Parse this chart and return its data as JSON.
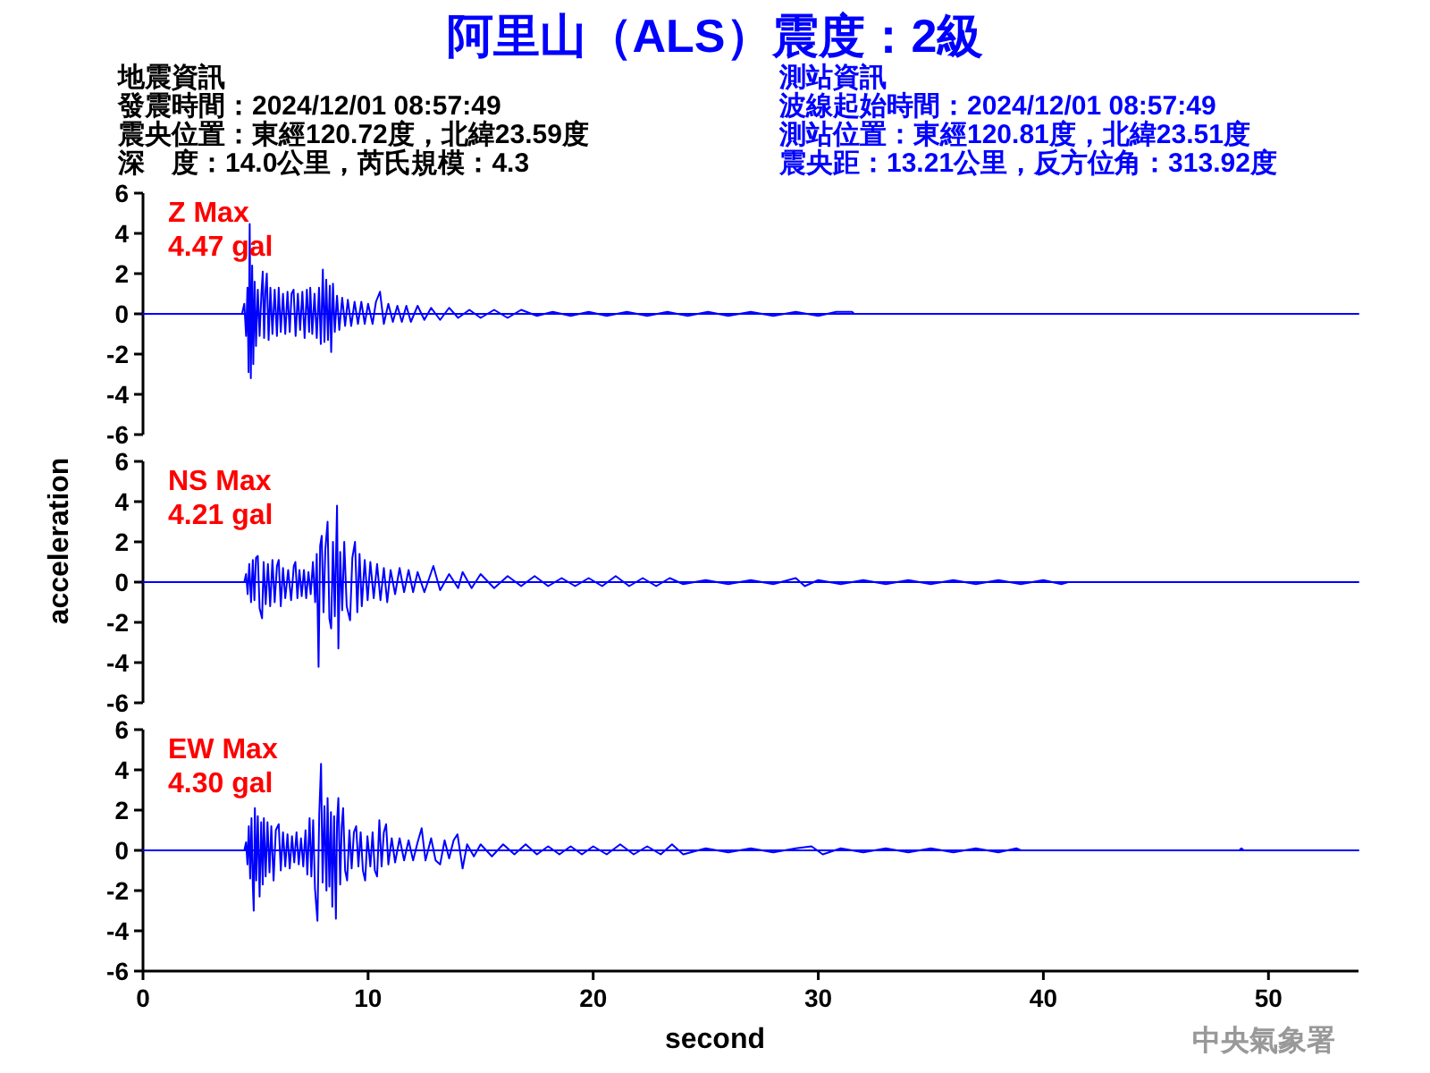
{
  "chart_data": [
    {
      "type": "other",
      "title": "阿里山（ALS）震度：2級",
      "annotations": [
        "地震資訊",
        "發震時間：2024/12/01 08:57:49",
        "震央位置：東經120.72度，北緯23.59度",
        "深　度：14.0公里，芮氏規模：4.3",
        "測站資訊",
        "波線起始時間：2024/12/01 08:57:49",
        "測站位置：東經120.81度，北緯23.51度",
        "震央距：13.21公里，反方位角：313.92度"
      ]
    },
    {
      "type": "line",
      "color": "#0000ff",
      "xlim": [
        0,
        54
      ],
      "ylim": [
        -6,
        6
      ],
      "yticks": [
        -6,
        -4,
        -2,
        0,
        2,
        4,
        6
      ],
      "tick_labels": "y",
      "ref_lines": [
        {
          "axis": "y",
          "value": 0,
          "color": "#0000ff"
        }
      ],
      "annotations": [
        "Z Max",
        "4.47 gal"
      ],
      "x": [
        0,
        4.4,
        4.5,
        4.58,
        4.64,
        4.69,
        4.74,
        4.79,
        4.85,
        4.9,
        4.96,
        5.02,
        5.1,
        5.18,
        5.26,
        5.32,
        5.38,
        5.44,
        5.5,
        5.58,
        5.66,
        5.75,
        5.85,
        5.95,
        6.03,
        6.12,
        6.22,
        6.32,
        6.42,
        6.52,
        6.6,
        6.69,
        6.78,
        6.88,
        6.98,
        7.08,
        7.18,
        7.28,
        7.38,
        7.43,
        7.52,
        7.62,
        7.72,
        7.82,
        7.9,
        7.99,
        8.06,
        8.14,
        8.22,
        8.3,
        8.36,
        8.44,
        8.52,
        8.62,
        8.72,
        8.85,
        8.98,
        9.1,
        9.25,
        9.4,
        9.55,
        9.7,
        9.85,
        10.0,
        10.2,
        10.35,
        10.53,
        10.7,
        10.9,
        11.1,
        11.3,
        11.5,
        11.7,
        11.9,
        12.2,
        12.5,
        12.8,
        13.2,
        13.6,
        14.0,
        14.5,
        15.0,
        15.6,
        16.2,
        16.8,
        17.5,
        18.2,
        19.0,
        19.8,
        20.6,
        21.5,
        22.4,
        23.3,
        24.2,
        25.1,
        26.0,
        27.0,
        28.0,
        29.0,
        30.0,
        30.8,
        31.5,
        31.6,
        54
      ],
      "values": [
        0,
        0,
        0.5,
        -1.1,
        1.3,
        -2.9,
        4.47,
        -3.2,
        2.4,
        -2.5,
        1.6,
        -1.6,
        1.2,
        -1.1,
        1.0,
        2.1,
        -1.2,
        1.1,
        2.0,
        -1.3,
        1.3,
        -1.0,
        1.2,
        -1.1,
        1.3,
        -0.9,
        1.0,
        -1.0,
        1.1,
        -0.9,
        1.0,
        1.2,
        -1.1,
        1.0,
        -0.8,
        1.1,
        -1.2,
        1.2,
        -0.9,
        1.3,
        -1.0,
        1.0,
        -1.2,
        1.3,
        -1.5,
        2.2,
        -1.4,
        1.7,
        -1.3,
        1.4,
        -1.9,
        1.5,
        -0.9,
        0.9,
        -0.8,
        0.8,
        -0.6,
        0.7,
        -0.6,
        0.6,
        -0.5,
        0.6,
        -0.5,
        0.5,
        -0.5,
        0.6,
        1.1,
        -0.5,
        0.5,
        -0.4,
        0.4,
        -0.4,
        0.4,
        -0.4,
        0.4,
        -0.3,
        0.3,
        -0.3,
        0.3,
        -0.2,
        0.2,
        -0.2,
        0.2,
        -0.2,
        0.2,
        -0.1,
        0.1,
        -0.1,
        0.1,
        -0.1,
        0.1,
        -0.1,
        0.1,
        -0.1,
        0.1,
        -0.1,
        0.1,
        -0.1,
        0.1,
        -0.1,
        0.1,
        0.1,
        0,
        0
      ]
    },
    {
      "type": "line",
      "color": "#0000ff",
      "xlim": [
        0,
        54
      ],
      "ylim": [
        -6,
        6
      ],
      "yticks": [
        -6,
        -4,
        -2,
        0,
        2,
        4,
        6
      ],
      "tick_labels": "y",
      "ref_lines": [
        {
          "axis": "y",
          "value": 0,
          "color": "#0000ff"
        }
      ],
      "ylabel": "acceleration",
      "annotations": [
        "NS Max",
        "4.21 gal"
      ],
      "x": [
        0,
        4.5,
        4.58,
        4.65,
        4.72,
        4.8,
        4.88,
        4.95,
        5.02,
        5.1,
        5.18,
        5.29,
        5.36,
        5.45,
        5.55,
        5.65,
        5.75,
        5.85,
        5.95,
        6.03,
        6.12,
        6.22,
        6.32,
        6.45,
        6.58,
        6.7,
        6.77,
        6.86,
        6.95,
        7.05,
        7.15,
        7.25,
        7.35,
        7.45,
        7.55,
        7.65,
        7.72,
        7.8,
        7.87,
        7.94,
        8.02,
        8.1,
        8.2,
        8.28,
        8.36,
        8.44,
        8.52,
        8.62,
        8.68,
        8.76,
        8.85,
        8.94,
        9.05,
        9.2,
        9.3,
        9.42,
        9.52,
        9.62,
        9.72,
        9.85,
        9.98,
        10.1,
        10.25,
        10.4,
        10.55,
        10.7,
        10.85,
        11.0,
        11.2,
        11.4,
        11.6,
        11.8,
        12.0,
        12.2,
        12.5,
        12.9,
        13.2,
        13.6,
        14.0,
        14.2,
        14.6,
        15.0,
        15.6,
        16.2,
        16.8,
        17.4,
        18.0,
        18.6,
        19.2,
        19.8,
        20.4,
        21.0,
        21.6,
        22.2,
        22.8,
        23.4,
        24.0,
        25.0,
        26.0,
        27.0,
        28.0,
        29.0,
        29.4,
        30.0,
        31.0,
        32.0,
        33.0,
        34.0,
        35.0,
        36.0,
        37.0,
        38.0,
        39.0,
        40.0,
        40.8,
        41.1,
        54
      ],
      "values": [
        0,
        0,
        0.4,
        -0.6,
        0.9,
        -1.0,
        1.1,
        -0.9,
        1.2,
        1.3,
        -1.3,
        -1.8,
        1.0,
        -1.1,
        0.9,
        -1.2,
        1.1,
        -1.0,
        0.8,
        1.1,
        -1.2,
        0.7,
        -0.8,
        0.6,
        -0.9,
        0.8,
        1.0,
        -0.8,
        0.6,
        -0.7,
        0.6,
        -0.8,
        0.5,
        -0.6,
        1.0,
        -1.0,
        1.4,
        -4.21,
        1.8,
        2.3,
        -1.5,
        1.6,
        3.0,
        -1.8,
        -2.3,
        2.0,
        -1.7,
        3.8,
        -3.3,
        1.5,
        -1.4,
        2.0,
        -1.2,
        -1.9,
        1.2,
        2.0,
        -1.5,
        1.4,
        -1.2,
        1.1,
        -0.9,
        1.0,
        -0.8,
        0.9,
        -0.9,
        0.7,
        -1.0,
        0.6,
        -0.6,
        0.7,
        -0.5,
        0.6,
        -0.5,
        0.5,
        -0.5,
        0.8,
        -0.4,
        0.4,
        -0.3,
        0.5,
        -0.3,
        0.4,
        -0.3,
        0.3,
        -0.2,
        0.3,
        -0.2,
        0.2,
        -0.2,
        0.2,
        -0.2,
        0.3,
        -0.2,
        0.2,
        -0.2,
        0.2,
        -0.1,
        0.1,
        -0.1,
        0.1,
        -0.1,
        0.2,
        -0.2,
        0.1,
        -0.1,
        0.1,
        -0.1,
        0.1,
        -0.1,
        0.1,
        -0.1,
        0.1,
        -0.1,
        0.1,
        -0.1,
        0,
        0
      ]
    },
    {
      "type": "line",
      "color": "#0000ff",
      "xlim": [
        0,
        54
      ],
      "ylim": [
        -6,
        6
      ],
      "yticks": [
        -6,
        -4,
        -2,
        0,
        2,
        4,
        6
      ],
      "xticks": [
        0,
        10,
        20,
        30,
        40,
        50
      ],
      "xlabel": "second",
      "ref_lines": [
        {
          "axis": "y",
          "value": 0,
          "color": "#0000ff"
        }
      ],
      "annotations": [
        "EW Max",
        "4.30 gal",
        "中央氣象署"
      ],
      "x": [
        0,
        4.5,
        4.58,
        4.64,
        4.7,
        4.76,
        4.82,
        4.88,
        4.92,
        4.97,
        5.03,
        5.1,
        5.18,
        5.25,
        5.32,
        5.37,
        5.45,
        5.53,
        5.62,
        5.7,
        5.8,
        5.9,
        6.03,
        6.12,
        6.22,
        6.32,
        6.42,
        6.52,
        6.62,
        6.72,
        6.82,
        6.92,
        7.02,
        7.12,
        7.22,
        7.3,
        7.4,
        7.48,
        7.56,
        7.64,
        7.75,
        7.83,
        7.91,
        7.98,
        8.06,
        8.15,
        8.2,
        8.28,
        8.35,
        8.41,
        8.49,
        8.57,
        8.62,
        8.68,
        8.76,
        8.83,
        8.89,
        8.98,
        9.07,
        9.17,
        9.27,
        9.37,
        9.47,
        9.57,
        9.67,
        9.77,
        9.87,
        9.97,
        10.1,
        10.2,
        10.3,
        10.4,
        10.5,
        10.6,
        10.7,
        10.8,
        10.9,
        11.05,
        11.2,
        11.4,
        11.6,
        11.8,
        12.0,
        12.2,
        12.38,
        12.55,
        12.8,
        13.0,
        13.2,
        13.4,
        13.6,
        13.8,
        13.97,
        14.2,
        14.4,
        14.7,
        15.0,
        15.5,
        16.0,
        16.5,
        17.0,
        17.5,
        18.0,
        18.5,
        19.0,
        19.5,
        20.0,
        20.6,
        21.2,
        21.8,
        22.4,
        23.0,
        23.5,
        24.0,
        25.0,
        26.0,
        27.0,
        28.0,
        29.0,
        29.7,
        30.2,
        31.0,
        32.0,
        33.0,
        34.0,
        35.0,
        36.0,
        37.0,
        38.0,
        38.8,
        39.0,
        48.7,
        48.8,
        48.9,
        54
      ],
      "values": [
        0,
        0,
        0.4,
        -0.7,
        1.2,
        -1.4,
        1.6,
        -1.8,
        -3.0,
        2.1,
        -1.5,
        1.7,
        -2.3,
        1.4,
        -1.7,
        1.6,
        -1.3,
        1.4,
        -1.1,
        1.2,
        -1.5,
        1.0,
        1.3,
        -1.0,
        0.9,
        -0.8,
        0.8,
        -0.9,
        0.7,
        -0.6,
        0.9,
        -0.7,
        0.6,
        -0.8,
        1.0,
        -1.2,
        1.6,
        -1.3,
        1.5,
        -1.9,
        -3.5,
        1.8,
        4.3,
        -1.6,
        2.2,
        -2.0,
        2.6,
        -1.8,
        1.9,
        -2.8,
        1.7,
        -3.4,
        1.4,
        2.6,
        -1.7,
        1.2,
        2.1,
        -1.0,
        -1.5,
        1.0,
        -0.9,
        0.9,
        1.2,
        -0.8,
        0.9,
        -1.0,
        -1.5,
        0.7,
        -0.8,
        0.9,
        -1.0,
        -1.3,
        1.5,
        -0.8,
        0.9,
        1.3,
        -0.7,
        0.6,
        -0.6,
        0.6,
        -0.5,
        0.5,
        -0.5,
        0.4,
        1.1,
        -0.5,
        0.6,
        -0.5,
        -0.7,
        0.5,
        -0.4,
        0.5,
        0.8,
        -0.9,
        0.3,
        -0.3,
        0.3,
        -0.3,
        0.3,
        -0.2,
        0.3,
        -0.2,
        0.2,
        -0.2,
        0.2,
        -0.2,
        0.2,
        -0.2,
        0.3,
        -0.2,
        0.2,
        -0.2,
        0.3,
        -0.2,
        0.1,
        -0.1,
        0.1,
        -0.1,
        0.1,
        0.2,
        -0.2,
        0.1,
        -0.1,
        0.1,
        -0.1,
        0.1,
        -0.1,
        0.1,
        -0.1,
        0.1,
        0,
        0,
        0.1,
        0,
        0
      ]
    }
  ]
}
